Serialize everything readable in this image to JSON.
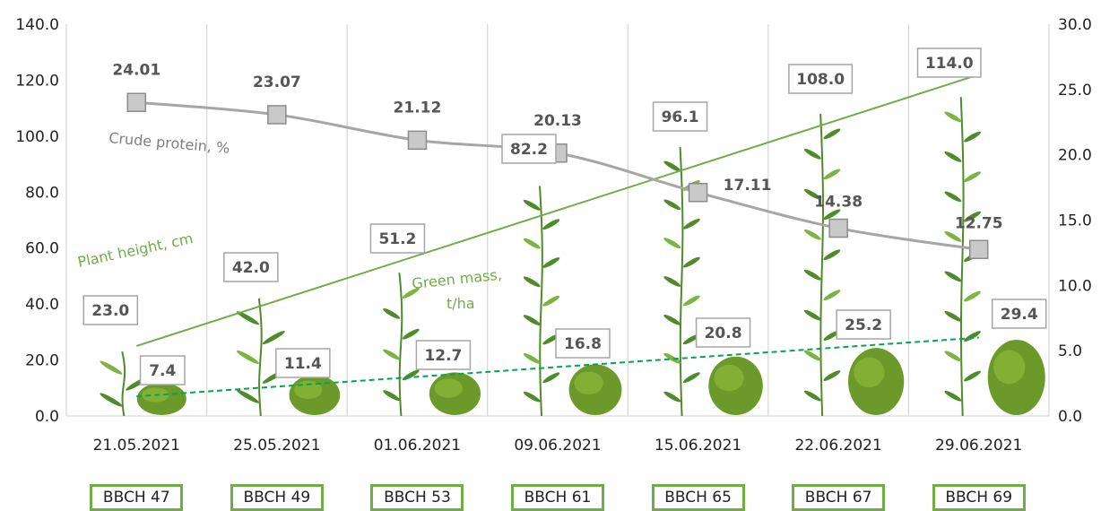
{
  "chart_data": {
    "type": "line",
    "categories": [
      "21.05.2021",
      "25.05.2021",
      "01.06.2021",
      "09.06.2021",
      "15.06.2021",
      "22.06.2021",
      "29.06.2021"
    ],
    "stages": [
      "BBCH 47",
      "BBCH 49",
      "BBCH 53",
      "BBCH 61",
      "BBCH 65",
      "BBCH 67",
      "BBCH 69"
    ],
    "y_left": {
      "ticks": [
        "0.0",
        "20.0",
        "40.0",
        "60.0",
        "80.0",
        "100.0",
        "120.0",
        "140.0"
      ],
      "ylim": [
        0,
        140
      ]
    },
    "y_right": {
      "ticks": [
        "0.0",
        "5.0",
        "10.0",
        "15.0",
        "20.0",
        "25.0",
        "30.0"
      ],
      "ylim": [
        0,
        30
      ]
    },
    "grid": "vertical",
    "series": [
      {
        "name": "Crude protein, %",
        "axis": "right",
        "values": [
          24.01,
          23.07,
          21.12,
          20.13,
          17.11,
          14.38,
          12.75
        ],
        "labels": [
          "24.01",
          "23.07",
          "21.12",
          "20.13",
          "17.11",
          "14.38",
          "12.75"
        ],
        "color": "#a6a6a6",
        "marker": "square"
      },
      {
        "name": "Plant height, cm",
        "axis": "left",
        "values": [
          23.0,
          42.0,
          51.2,
          82.2,
          96.1,
          108.0,
          114.0
        ],
        "labels": [
          "23.0",
          "42.0",
          "51.2",
          "82.2",
          "96.1",
          "108.0",
          "114.0"
        ],
        "color": "#70ad47",
        "trendline": [
          25.0,
          122.0
        ]
      },
      {
        "name": "Green mass, t/ha",
        "name_lines": [
          "Green mass,",
          "t/ha"
        ],
        "axis": "left",
        "values": [
          7.4,
          11.4,
          12.7,
          16.8,
          20.8,
          25.2,
          29.4
        ],
        "labels": [
          "7.4",
          "11.4",
          "12.7",
          "16.8",
          "20.8",
          "25.2",
          "29.4"
        ],
        "color": "#00a650",
        "trendline": [
          7.0,
          28.0
        ]
      }
    ]
  },
  "colors": {
    "plant_green": "#4f8a2b",
    "plant_light": "#7cb342",
    "moss": "#6b9a2a",
    "moss_dark": "#3f6b14",
    "label_border": "#a6a6a6",
    "bbch_border": "#70ad47"
  }
}
